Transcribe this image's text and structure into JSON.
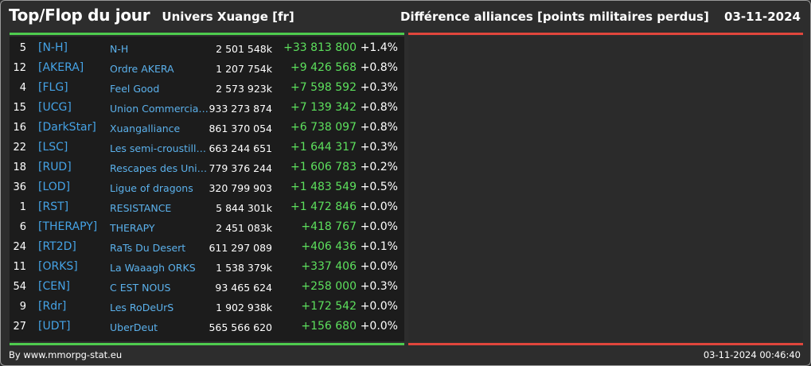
{
  "header": {
    "title": "Top/Flop du jour",
    "universe": "Univers Xuange [fr]",
    "stat_label": "Différence alliances [points militaires perdus]",
    "date": "03-11-2024"
  },
  "colors": {
    "top_bar": "#4ecb4e",
    "flop_bar": "#e0463c",
    "tag": "#45a3e6",
    "positive": "#5de05d"
  },
  "top": [
    {
      "rank": "5",
      "tag": "[N-H]",
      "name": "N-H",
      "points": "2 501 548k",
      "diff": "+33 813 800",
      "pct": "+1.4%"
    },
    {
      "rank": "12",
      "tag": "[AKERA]",
      "name": "Ordre AKERA",
      "points": "1 207 754k",
      "diff": "+9 426 568",
      "pct": "+0.8%"
    },
    {
      "rank": "4",
      "tag": "[FLG]",
      "name": "Feel Good",
      "points": "2 573 923k",
      "diff": "+7 598 592",
      "pct": "+0.3%"
    },
    {
      "rank": "15",
      "tag": "[UCG]",
      "name": "Union Commerciale...",
      "points": "933 273 874",
      "diff": "+7 139 342",
      "pct": "+0.8%"
    },
    {
      "rank": "16",
      "tag": "[DarkStar]",
      "name": "Xuangalliance",
      "points": "861 370 054",
      "diff": "+6 738 097",
      "pct": "+0.8%"
    },
    {
      "rank": "22",
      "tag": "[LSC]",
      "name": "Les semi-croustilla...",
      "points": "663 244 651",
      "diff": "+1 644 317",
      "pct": "+0.3%"
    },
    {
      "rank": "18",
      "tag": "[RUD]",
      "name": "Rescapes des Univ...",
      "points": "779 376 244",
      "diff": "+1 606 783",
      "pct": "+0.2%"
    },
    {
      "rank": "36",
      "tag": "[LOD]",
      "name": "Ligue of dragons",
      "points": "320 799 903",
      "diff": "+1 483 549",
      "pct": "+0.5%"
    },
    {
      "rank": "1",
      "tag": "[RST]",
      "name": "RESISTANCE",
      "points": "5 844 301k",
      "diff": "+1 472 846",
      "pct": "+0.0%"
    },
    {
      "rank": "6",
      "tag": "[THERAPY]",
      "name": "THERAPY",
      "points": "2 451 083k",
      "diff": "+418 767",
      "pct": "+0.0%"
    },
    {
      "rank": "24",
      "tag": "[RT2D]",
      "name": "RaTs Du Desert",
      "points": "611 297 089",
      "diff": "+406 436",
      "pct": "+0.1%"
    },
    {
      "rank": "11",
      "tag": "[ORKS]",
      "name": "La Waaagh ORKS",
      "points": "1 538 379k",
      "diff": "+337 406",
      "pct": "+0.0%"
    },
    {
      "rank": "54",
      "tag": "[CEN]",
      "name": "C EST NOUS",
      "points": "93 465 624",
      "diff": "+258 000",
      "pct": "+0.3%"
    },
    {
      "rank": "9",
      "tag": "[Rdr]",
      "name": "Les RoDeUrS",
      "points": "1 902 938k",
      "diff": "+172 542",
      "pct": "+0.0%"
    },
    {
      "rank": "27",
      "tag": "[UDT]",
      "name": "UberDeut",
      "points": "565 566 620",
      "diff": "+156 680",
      "pct": "+0.0%"
    }
  ],
  "footer": {
    "credit": "By www.mmorpg-stat.eu",
    "timestamp": "03-11-2024 00:46:40"
  }
}
